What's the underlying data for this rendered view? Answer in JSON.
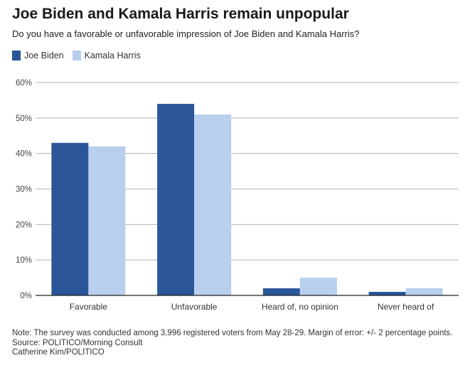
{
  "title": "Joe Biden and Kamala Harris remain unpopular",
  "subtitle": "Do you have a favorable or unfavorable impression of Joe Biden and Kamala Harris?",
  "colors": {
    "biden": "#2a5599",
    "harris": "#b8cfee"
  },
  "chart_data": {
    "type": "bar",
    "categories": [
      "Favorable",
      "Unfavorable",
      "Heard of, no opinion",
      "Never heard of"
    ],
    "series": [
      {
        "name": "Joe Biden",
        "values": [
          43,
          54,
          2,
          1
        ]
      },
      {
        "name": "Kamala Harris",
        "values": [
          42,
          51,
          5,
          2
        ]
      }
    ],
    "ylim": [
      0,
      60
    ],
    "yticks": [
      "0%",
      "10%",
      "20%",
      "30%",
      "40%",
      "50%",
      "60%"
    ],
    "ytick_values": [
      0,
      10,
      20,
      30,
      40,
      50,
      60
    ],
    "grid": true,
    "legend": "top-left"
  },
  "notes": {
    "note": "Note: The survey was conducted among 3,996 registered voters from May 28-29. Margin of error: +/- 2 percentage points.",
    "source": "Source: POLITICO/Morning Consult",
    "credit": "Catherine Kim/POLITICO"
  }
}
